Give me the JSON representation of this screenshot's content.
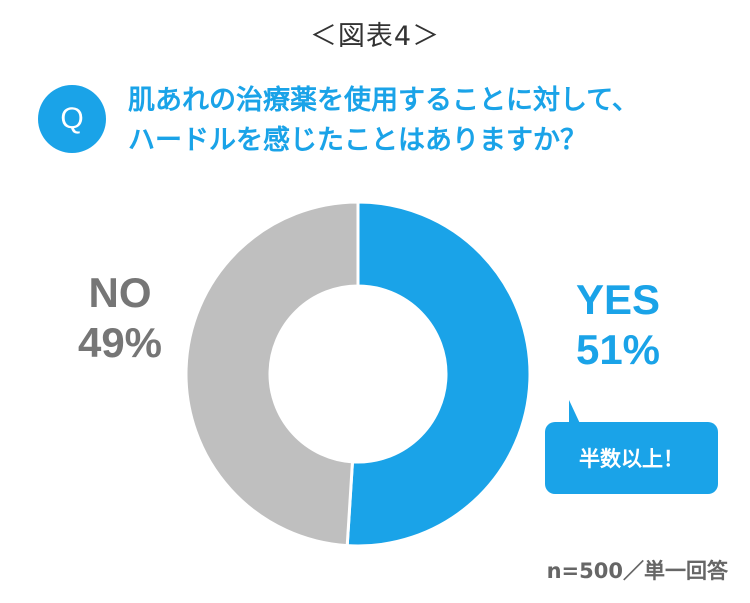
{
  "figure_title": "＜図表4＞",
  "question": {
    "badge": "Q",
    "line1": "肌あれの治療薬を使用することに対して、",
    "line2": "ハードルを感じたことはありますか？"
  },
  "callout": {
    "text": "半数以上！"
  },
  "footnote": "n=500／単一回答",
  "colors": {
    "accent": "#1aa3e8",
    "no": "#bfbfbf",
    "no_label": "#767676"
  },
  "chart_data": {
    "type": "pie",
    "style": "donut",
    "title": "",
    "legend": "none",
    "categories": [
      "YES",
      "NO"
    ],
    "values": [
      51,
      49
    ],
    "value_labels": [
      "51%",
      "49%"
    ],
    "colors": [
      "#1aa3e8",
      "#bfbfbf"
    ]
  }
}
